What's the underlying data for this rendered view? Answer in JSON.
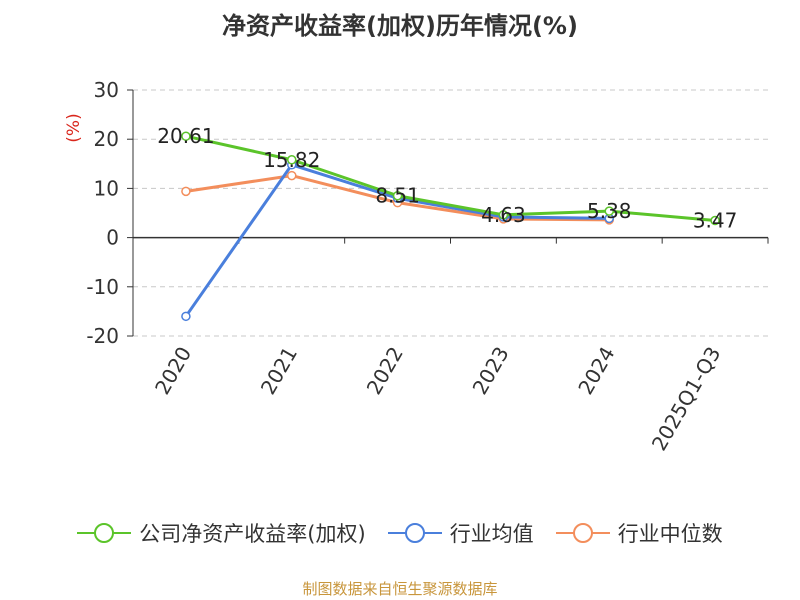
{
  "title": "净资产收益率(加权)历年情况(%)",
  "source": "制图数据来自恒生聚源数据库",
  "chart_data": {
    "type": "line",
    "title": "净资产收益率(加权)历年情况(%)",
    "ylabel": "(%)",
    "xlabel": "",
    "categories": [
      "2020",
      "2021",
      "2022",
      "2023",
      "2024",
      "2025Q1-Q3"
    ],
    "ylim": [
      -20,
      30
    ],
    "yticks": [
      "30",
      "20",
      "10",
      "0",
      "-10",
      "-20"
    ],
    "grid": true,
    "legend": "bottom",
    "series": [
      {
        "name": "公司净资产收益率(加权)",
        "color": "#5bc42a",
        "values": [
          20.61,
          15.82,
          8.51,
          4.63,
          5.38,
          3.47
        ],
        "labels": [
          "20.61",
          "15.82",
          "8.51",
          "4.63",
          "5.38",
          "3.47"
        ]
      },
      {
        "name": "行业均值",
        "color": "#4a7fdc",
        "values": [
          -16.0,
          14.8,
          8.0,
          4.2,
          3.9,
          null
        ]
      },
      {
        "name": "行业中位数",
        "color": "#f38e5c",
        "values": [
          9.4,
          12.6,
          7.1,
          3.8,
          3.6,
          null
        ]
      }
    ]
  }
}
